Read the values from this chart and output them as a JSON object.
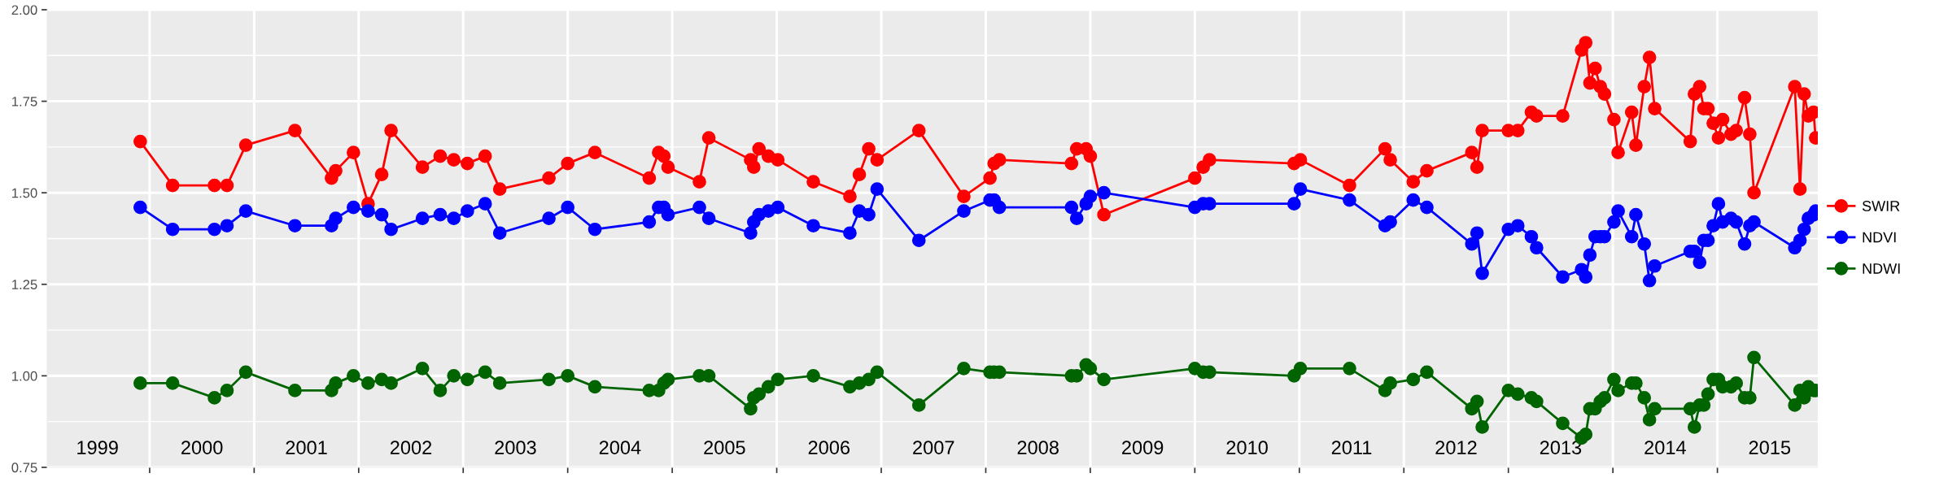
{
  "chart_data": {
    "type": "line",
    "x": [
      1999.91,
      2000.22,
      2000.62,
      2000.74,
      2000.92,
      2001.39,
      2001.74,
      2001.78,
      2001.95,
      2002.09,
      2002.22,
      2002.31,
      2002.61,
      2002.78,
      2002.91,
      2003.04,
      2003.21,
      2003.35,
      2003.82,
      2004.0,
      2004.26,
      2004.78,
      2004.87,
      2004.92,
      2004.96,
      2005.26,
      2005.35,
      2005.75,
      2005.78,
      2005.83,
      2005.92,
      2006.01,
      2006.35,
      2006.7,
      2006.79,
      2006.88,
      2006.96,
      2007.36,
      2007.79,
      2008.04,
      2008.08,
      2008.13,
      2008.82,
      2008.87,
      2008.96,
      2009.0,
      2009.13,
      2010.0,
      2010.08,
      2010.14,
      2010.95,
      2011.01,
      2011.48,
      2011.82,
      2011.87,
      2012.09,
      2012.22,
      2012.65,
      2012.7,
      2012.75,
      2013.0,
      2013.09,
      2013.22,
      2013.27,
      2013.52,
      2013.7,
      2013.74,
      2013.78,
      2013.83,
      2013.88,
      2013.92,
      2014.01,
      2014.05,
      2014.18,
      2014.22,
      2014.3,
      2014.35,
      2014.4,
      2014.74,
      2014.78,
      2014.83,
      2014.87,
      2014.91,
      2014.96,
      2015.01,
      2015.05,
      2015.13,
      2015.18,
      2015.26,
      2015.31,
      2015.35,
      2015.74,
      2015.79,
      2015.83,
      2015.87,
      2015.92,
      2015.94
    ],
    "series": [
      {
        "name": "SWIR",
        "color": "#ff0000",
        "values": [
          1.64,
          1.52,
          1.52,
          1.52,
          1.63,
          1.67,
          1.54,
          1.56,
          1.61,
          1.47,
          1.55,
          1.67,
          1.57,
          1.6,
          1.59,
          1.58,
          1.6,
          1.51,
          1.54,
          1.58,
          1.61,
          1.54,
          1.61,
          1.6,
          1.57,
          1.53,
          1.65,
          1.59,
          1.57,
          1.62,
          1.6,
          1.59,
          1.53,
          1.49,
          1.55,
          1.62,
          1.59,
          1.67,
          1.49,
          1.54,
          1.58,
          1.59,
          1.58,
          1.62,
          1.62,
          1.6,
          1.44,
          1.54,
          1.57,
          1.59,
          1.58,
          1.59,
          1.52,
          1.62,
          1.59,
          1.53,
          1.56,
          1.61,
          1.57,
          1.67,
          1.67,
          1.67,
          1.72,
          1.71,
          1.71,
          1.89,
          1.91,
          1.8,
          1.84,
          1.79,
          1.77,
          1.7,
          1.61,
          1.72,
          1.63,
          1.79,
          1.87,
          1.73,
          1.64,
          1.77,
          1.79,
          1.73,
          1.73,
          1.69,
          1.65,
          1.7,
          1.66,
          1.67,
          1.76,
          1.66,
          1.5,
          1.79,
          1.51,
          1.77,
          1.71,
          1.72,
          1.65
        ]
      },
      {
        "name": "NDVI",
        "color": "#0000ff",
        "values": [
          1.46,
          1.4,
          1.4,
          1.41,
          1.45,
          1.41,
          1.41,
          1.43,
          1.46,
          1.45,
          1.44,
          1.4,
          1.43,
          1.44,
          1.43,
          1.45,
          1.47,
          1.39,
          1.43,
          1.46,
          1.4,
          1.42,
          1.46,
          1.46,
          1.44,
          1.46,
          1.43,
          1.39,
          1.42,
          1.44,
          1.45,
          1.46,
          1.41,
          1.39,
          1.45,
          1.44,
          1.51,
          1.37,
          1.45,
          1.48,
          1.48,
          1.46,
          1.46,
          1.43,
          1.47,
          1.49,
          1.5,
          1.46,
          1.47,
          1.47,
          1.47,
          1.51,
          1.48,
          1.41,
          1.42,
          1.48,
          1.46,
          1.36,
          1.39,
          1.28,
          1.4,
          1.41,
          1.38,
          1.35,
          1.27,
          1.29,
          1.27,
          1.33,
          1.38,
          1.38,
          1.38,
          1.42,
          1.45,
          1.38,
          1.44,
          1.36,
          1.26,
          1.3,
          1.34,
          1.34,
          1.31,
          1.37,
          1.37,
          1.41,
          1.47,
          1.42,
          1.43,
          1.42,
          1.36,
          1.41,
          1.42,
          1.35,
          1.37,
          1.4,
          1.43,
          1.44,
          1.45
        ]
      },
      {
        "name": "NDWI",
        "color": "#006400",
        "values": [
          0.98,
          0.98,
          0.94,
          0.96,
          1.01,
          0.96,
          0.96,
          0.98,
          1.0,
          0.98,
          0.99,
          0.98,
          1.02,
          0.96,
          1.0,
          0.99,
          1.01,
          0.98,
          0.99,
          1.0,
          0.97,
          0.96,
          0.96,
          0.98,
          0.99,
          1.0,
          1.0,
          0.91,
          0.94,
          0.95,
          0.97,
          0.99,
          1.0,
          0.97,
          0.98,
          0.99,
          1.01,
          0.92,
          1.02,
          1.01,
          1.01,
          1.01,
          1.0,
          1.0,
          1.03,
          1.02,
          0.99,
          1.02,
          1.01,
          1.01,
          1.0,
          1.02,
          1.02,
          0.96,
          0.98,
          0.99,
          1.01,
          0.91,
          0.93,
          0.86,
          0.96,
          0.95,
          0.94,
          0.93,
          0.87,
          0.83,
          0.84,
          0.91,
          0.91,
          0.93,
          0.94,
          0.99,
          0.96,
          0.98,
          0.98,
          0.94,
          0.88,
          0.91,
          0.91,
          0.86,
          0.92,
          0.92,
          0.95,
          0.99,
          0.99,
          0.97,
          0.97,
          0.98,
          0.94,
          0.94,
          1.05,
          0.92,
          0.96,
          0.94,
          0.97,
          0.96,
          0.96
        ]
      }
    ],
    "xlim": [
      1999.02,
      2015.96
    ],
    "xticks": [
      {
        "value": 1999.5,
        "label": "1999"
      },
      {
        "value": 2000.5,
        "label": "2000"
      },
      {
        "value": 2001.5,
        "label": "2001"
      },
      {
        "value": 2002.5,
        "label": "2002"
      },
      {
        "value": 2003.5,
        "label": "2003"
      },
      {
        "value": 2004.5,
        "label": "2004"
      },
      {
        "value": 2005.5,
        "label": "2005"
      },
      {
        "value": 2006.5,
        "label": "2006"
      },
      {
        "value": 2007.5,
        "label": "2007"
      },
      {
        "value": 2008.5,
        "label": "2008"
      },
      {
        "value": 2009.5,
        "label": "2009"
      },
      {
        "value": 2010.5,
        "label": "2010"
      },
      {
        "value": 2011.5,
        "label": "2011"
      },
      {
        "value": 2012.5,
        "label": "2012"
      },
      {
        "value": 2013.5,
        "label": "2013"
      },
      {
        "value": 2014.5,
        "label": "2014"
      },
      {
        "value": 2015.5,
        "label": "2015"
      },
      {
        "value": 2000,
        "label": null
      },
      {
        "value": 2001,
        "label": null
      },
      {
        "value": 2002,
        "label": null
      },
      {
        "value": 2003,
        "label": null
      },
      {
        "value": 2004,
        "label": null
      },
      {
        "value": 2005,
        "label": null
      },
      {
        "value": 2006,
        "label": null
      },
      {
        "value": 2007,
        "label": null
      },
      {
        "value": 2008,
        "label": null
      },
      {
        "value": 2009,
        "label": null
      },
      {
        "value": 2010,
        "label": null
      },
      {
        "value": 2011,
        "label": null
      },
      {
        "value": 2012,
        "label": null
      },
      {
        "value": 2013,
        "label": null
      },
      {
        "value": 2014,
        "label": null
      },
      {
        "value": 2015,
        "label": null
      }
    ],
    "ylim": [
      0.75,
      2.0
    ],
    "yticks": [
      0.75,
      {
        "value": 1,
        "label": "1.00"
      },
      {
        "value": 1.25,
        "label": "1.25"
      },
      {
        "value": 1.5,
        "label": "1.50"
      },
      {
        "value": 1.75,
        "label": "1.75"
      },
      {
        "value": 2,
        "label": "2.00"
      }
    ],
    "grid": true,
    "legend": "right",
    "marker": "circle",
    "line_style": "solid"
  }
}
